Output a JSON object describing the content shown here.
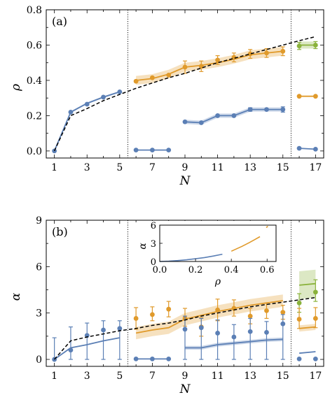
{
  "colors": {
    "blue": "#5b7fb5",
    "orange": "#e09a2b",
    "green": "#8ab23b",
    "ref": "#000000"
  },
  "chart_data": [
    {
      "id": "a",
      "type": "line",
      "panel_label": "(a)",
      "xlabel": "N",
      "ylabel": "ρ",
      "xlim": [
        0.5,
        17.5
      ],
      "ylim": [
        -0.04,
        0.8
      ],
      "xticks": [
        1,
        3,
        5,
        7,
        9,
        11,
        13,
        15,
        17
      ],
      "xtick_labels": [
        "1",
        "3",
        "5",
        "7",
        "9",
        "11",
        "13",
        "15",
        "17"
      ],
      "yticks": [
        0,
        0.2,
        0.4,
        0.6,
        0.8
      ],
      "ytick_labels": [
        "0.0",
        "0.2",
        "0.4",
        "0.6",
        "0.8"
      ],
      "vlines": [
        5.5,
        15.5
      ],
      "reference": {
        "x": [
          1,
          2,
          3,
          4,
          5,
          6,
          7,
          8,
          9,
          10,
          11,
          12,
          13,
          14,
          15,
          16,
          17
        ],
        "y": [
          0,
          0.2,
          0.24,
          0.285,
          0.32,
          0.355,
          0.385,
          0.415,
          0.44,
          0.47,
          0.5,
          0.525,
          0.55,
          0.575,
          0.6,
          0.625,
          0.648
        ]
      },
      "series": [
        {
          "color": "blue",
          "x": [
            1,
            2,
            3,
            4,
            5
          ],
          "line": [
            0,
            0.22,
            0.27,
            0.305,
            0.335
          ],
          "points": [
            0,
            0.22,
            0.265,
            0.305,
            0.335
          ],
          "err": [
            0,
            0,
            0,
            0,
            0
          ],
          "band": 0.005
        },
        {
          "color": "orange",
          "x": [
            6,
            7,
            8,
            9,
            10,
            11,
            12,
            13,
            14,
            15
          ],
          "line": [
            0.4,
            0.41,
            0.435,
            0.475,
            0.485,
            0.5,
            0.52,
            0.545,
            0.555,
            0.565
          ],
          "points": [
            0.395,
            0.415,
            0.43,
            0.475,
            0.48,
            0.515,
            0.53,
            0.55,
            0.555,
            0.565
          ],
          "err": [
            0,
            0,
            0,
            0.035,
            0.03,
            0.025,
            0.025,
            0.025,
            0.025,
            0.025
          ],
          "band": 0.025
        },
        {
          "color": "blue",
          "x": [
            6,
            7,
            8
          ],
          "line": [
            0.005,
            0.005,
            0.005
          ],
          "points": [
            0.005,
            0.005,
            0.005
          ],
          "err": [
            0,
            0,
            0
          ],
          "band": 0
        },
        {
          "color": "blue",
          "x": [
            9,
            10,
            11,
            12,
            13,
            14,
            15
          ],
          "line": [
            0.165,
            0.16,
            0.2,
            0.2,
            0.235,
            0.235,
            0.235
          ],
          "points": [
            0.165,
            0.16,
            0.2,
            0.2,
            0.235,
            0.235,
            0.235
          ],
          "err": [
            0,
            0,
            0,
            0,
            0.01,
            0,
            0.015
          ],
          "band": 0.012
        },
        {
          "color": "green",
          "x": [
            16,
            17
          ],
          "line": [
            0.6,
            0.6
          ],
          "points": [
            0.595,
            0.6
          ],
          "err": [
            0.02,
            0.02
          ],
          "band": 0.02
        },
        {
          "color": "orange",
          "x": [
            16,
            17
          ],
          "line": [
            0.31,
            0.31
          ],
          "points": [
            0.31,
            0.31
          ],
          "err": [
            0,
            0
          ],
          "band": 0
        },
        {
          "color": "blue",
          "x": [
            16,
            17
          ],
          "line": [
            0.015,
            0.01
          ],
          "points": [
            0.015,
            0.01
          ],
          "err": [
            0,
            0
          ],
          "band": 0
        }
      ]
    },
    {
      "id": "b",
      "type": "line",
      "panel_label": "(b)",
      "xlabel": "N",
      "ylabel": "α",
      "xlim": [
        0.5,
        17.5
      ],
      "ylim": [
        -0.45,
        9
      ],
      "xticks": [
        1,
        3,
        5,
        7,
        9,
        11,
        13,
        15,
        17
      ],
      "xtick_labels": [
        "1",
        "3",
        "5",
        "7",
        "9",
        "11",
        "13",
        "15",
        "17"
      ],
      "yticks": [
        0,
        3,
        6,
        9
      ],
      "ytick_labels": [
        "0",
        "3",
        "6",
        "9"
      ],
      "vlines": [
        5.5,
        15.5
      ],
      "reference": {
        "x": [
          1,
          2,
          3,
          4,
          5,
          6,
          7,
          8,
          9,
          10,
          11,
          12,
          13,
          14,
          15,
          16,
          17
        ],
        "y": [
          0,
          1.2,
          1.45,
          1.65,
          1.85,
          2.0,
          2.2,
          2.35,
          2.55,
          2.8,
          3.0,
          3.2,
          3.4,
          3.55,
          3.7,
          3.85,
          4.0
        ]
      },
      "series": [
        {
          "color": "blue",
          "x": [
            1,
            2,
            3,
            4,
            5
          ],
          "line": [
            0,
            0.75,
            0.95,
            1.2,
            1.4
          ],
          "points": [
            0,
            0.6,
            1.55,
            1.9,
            2.0
          ],
          "err_up": [
            1.4,
            1.5,
            0.8,
            0.6,
            0.5
          ],
          "err_dn": [
            0,
            0.6,
            1.55,
            1.9,
            2.0
          ],
          "band": 0.03
        },
        {
          "color": "orange",
          "x": [
            6,
            7,
            8,
            9,
            10,
            11,
            12,
            13,
            14,
            15
          ],
          "line": [
            1.7,
            1.9,
            2.05,
            2.6,
            2.85,
            3.1,
            3.3,
            3.5,
            3.65,
            3.8
          ],
          "points": [
            2.65,
            2.9,
            3.25,
            2.65,
            2.1,
            3.2,
            3.3,
            2.8,
            3.15,
            3.05
          ],
          "err_up": [
            0.7,
            0.5,
            0.5,
            0.65,
            0.6,
            0.7,
            0.55,
            0.5,
            0.5,
            0.45
          ],
          "err_dn": [
            0.7,
            0.4,
            0.5,
            0.5,
            0.6,
            0.7,
            0.5,
            0.5,
            0.5,
            0.45
          ],
          "band": 0.4
        },
        {
          "color": "blue",
          "x": [
            6,
            7,
            8
          ],
          "line": [
            0.03,
            0.03,
            0.03
          ],
          "points": [
            0.03,
            0.03,
            0.03
          ],
          "err_up": [
            0,
            0,
            0
          ],
          "err_dn": [
            0,
            0,
            0
          ],
          "band": 0
        },
        {
          "color": "blue",
          "x": [
            9,
            10,
            11,
            12,
            13,
            14,
            15
          ],
          "line": [
            0.75,
            0.75,
            0.95,
            1.05,
            1.15,
            1.25,
            1.3
          ],
          "points": [
            1.95,
            2.05,
            1.7,
            1.45,
            1.8,
            1.75,
            2.3
          ],
          "err_up": [
            0.85,
            0.6,
            0.85,
            0.8,
            0.85,
            0.7,
            0.6
          ],
          "err_dn": [
            1.95,
            2.05,
            1.7,
            1.45,
            1.8,
            1.75,
            2.3
          ],
          "band": 0.12
        },
        {
          "color": "green",
          "x": [
            16,
            17
          ],
          "line": [
            4.8,
            4.9
          ],
          "points": [
            3.65,
            4.35
          ],
          "err_up": [
            0.6,
            0.8
          ],
          "err_dn": [
            0.6,
            0.6
          ],
          "band": 0.9
        },
        {
          "color": "orange",
          "x": [
            16,
            17
          ],
          "line": [
            2.0,
            2.1
          ],
          "points": [
            2.6,
            2.65
          ],
          "err_up": [
            0.7,
            0.7
          ],
          "err_dn": [
            0.6,
            0.6
          ],
          "band": 0.2
        },
        {
          "color": "blue",
          "x": [
            16,
            17
          ],
          "line": [
            0.4,
            0.5
          ],
          "points": [
            0.03,
            0.03
          ],
          "err_up": [
            0,
            0
          ],
          "err_dn": [
            0,
            0
          ],
          "band": 0
        }
      ],
      "inset": {
        "xlabel": "ρ",
        "ylabel": "α",
        "xlim": [
          0,
          0.65
        ],
        "ylim": [
          0,
          6
        ],
        "xticks": [
          0,
          0.2,
          0.4,
          0.6
        ],
        "xtick_labels": [
          "0.0",
          "0.2",
          "0.4",
          "0.6"
        ],
        "yticks": [
          0,
          3,
          6
        ],
        "ytick_labels": [
          "0",
          "3",
          "6"
        ],
        "series": [
          {
            "color": "blue",
            "x": [
              0,
              0.05,
              0.1,
              0.15,
              0.2,
              0.25,
              0.3,
              0.35
            ],
            "y": [
              0,
              0.06,
              0.15,
              0.28,
              0.45,
              0.65,
              0.9,
              1.2
            ]
          },
          {
            "color": "orange",
            "x": [
              0.4,
              0.43,
              0.46,
              0.5,
              0.53,
              0.56
            ],
            "y": [
              1.7,
              2.1,
              2.5,
              3.1,
              3.6,
              4.1
            ]
          },
          {
            "color": "orange",
            "x": [
              0.595,
              0.61
            ],
            "y": [
              5.6,
              5.95
            ],
            "dash": true
          }
        ]
      }
    }
  ]
}
